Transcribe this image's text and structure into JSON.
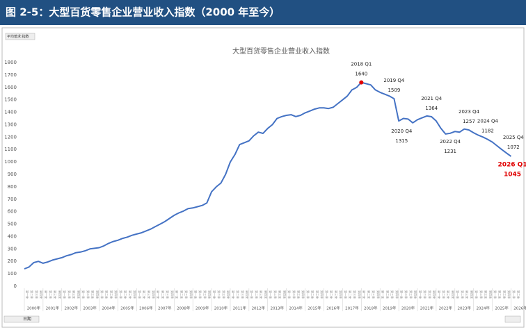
{
  "header": {
    "title": "图 2-5：大型百货零售企业营业收入指数（2000 年至今）"
  },
  "ui": {
    "value_button": "平均值求:指数",
    "filter_label": "日期"
  },
  "chart_data": {
    "type": "line",
    "title": "大型百货零售企业营业收入指数",
    "x": [
      2000,
      2000.25,
      2000.5,
      2000.75,
      2001,
      2001.25,
      2001.5,
      2001.75,
      2002,
      2002.25,
      2002.5,
      2002.75,
      2003,
      2003.25,
      2003.5,
      2003.75,
      2004,
      2004.25,
      2004.5,
      2004.75,
      2005,
      2005.25,
      2005.5,
      2005.75,
      2006,
      2006.25,
      2006.5,
      2006.75,
      2007,
      2007.25,
      2007.5,
      2007.75,
      2008,
      2008.25,
      2008.5,
      2008.75,
      2009,
      2009.25,
      2009.5,
      2009.75,
      2010,
      2010.25,
      2010.5,
      2010.75,
      2011,
      2011.25,
      2011.5,
      2011.75,
      2012,
      2012.25,
      2012.5,
      2012.75,
      2013,
      2013.25,
      2013.5,
      2013.75,
      2014,
      2014.25,
      2014.5,
      2014.75,
      2015,
      2015.25,
      2015.5,
      2015.75,
      2016,
      2016.25,
      2016.5,
      2016.75,
      2017,
      2017.25,
      2017.5,
      2017.75,
      2018,
      2018.25,
      2018.5,
      2018.75,
      2019,
      2019.25,
      2019.5,
      2019.75,
      2020,
      2020.25,
      2020.5,
      2020.75,
      2021,
      2021.25,
      2021.5,
      2021.75,
      2022,
      2022.25,
      2022.5,
      2022.75,
      2023,
      2023.25,
      2023.5,
      2023.75,
      2024,
      2024.25,
      2024.5,
      2024.75,
      2025,
      2025.25,
      2025.5,
      2025.75,
      2026
    ],
    "series": [
      {
        "name": "指数",
        "color": "#4472c4",
        "values": [
          140,
          155,
          190,
          200,
          185,
          195,
          210,
          220,
          230,
          245,
          255,
          270,
          275,
          285,
          300,
          305,
          310,
          325,
          345,
          360,
          370,
          385,
          395,
          410,
          420,
          430,
          445,
          460,
          480,
          500,
          520,
          545,
          570,
          590,
          605,
          625,
          630,
          640,
          650,
          670,
          760,
          800,
          830,
          900,
          1000,
          1060,
          1140,
          1155,
          1170,
          1210,
          1240,
          1230,
          1270,
          1300,
          1350,
          1365,
          1375,
          1380,
          1365,
          1375,
          1395,
          1410,
          1425,
          1435,
          1435,
          1430,
          1440,
          1470,
          1500,
          1530,
          1580,
          1600,
          1640,
          1630,
          1620,
          1580,
          1560,
          1545,
          1530,
          1509,
          1330,
          1350,
          1345,
          1315,
          1340,
          1355,
          1370,
          1364,
          1330,
          1270,
          1225,
          1231,
          1245,
          1240,
          1265,
          1257,
          1235,
          1215,
          1200,
          1182,
          1160,
          1130,
          1100,
          1072,
          1045
        ]
      }
    ],
    "xlim": [
      2000,
      2026.5
    ],
    "xticks": [
      {
        "value": 2000,
        "label": "2000年"
      },
      {
        "value": 2001,
        "label": "2001年"
      },
      {
        "value": 2002,
        "label": "2002年"
      },
      {
        "value": 2003,
        "label": "2003年"
      },
      {
        "value": 2004,
        "label": "2004年"
      },
      {
        "value": 2005,
        "label": "2005年"
      },
      {
        "value": 2006,
        "label": "2006年"
      },
      {
        "value": 2007,
        "label": "2007年"
      },
      {
        "value": 2008,
        "label": "2008年"
      },
      {
        "value": 2009,
        "label": "2009年"
      },
      {
        "value": 2010,
        "label": "2010年"
      },
      {
        "value": 2011,
        "label": "2011年"
      },
      {
        "value": 2012,
        "label": "2012年"
      },
      {
        "value": 2013,
        "label": "2013年"
      },
      {
        "value": 2014,
        "label": "2014年"
      },
      {
        "value": 2015,
        "label": "2015年"
      },
      {
        "value": 2016,
        "label": "2016年"
      },
      {
        "value": 2017,
        "label": "2017年"
      },
      {
        "value": 2018,
        "label": "2018年"
      },
      {
        "value": 2019,
        "label": "2019年"
      },
      {
        "value": 2020,
        "label": "2020年"
      },
      {
        "value": 2021,
        "label": "2021年"
      },
      {
        "value": 2022,
        "label": "2022年"
      },
      {
        "value": 2023,
        "label": "2023年"
      },
      {
        "value": 2024,
        "label": "2024年"
      },
      {
        "value": 2025,
        "label": "2025年"
      },
      {
        "value": 2026,
        "label": "2026年"
      }
    ],
    "quarter_labels": [
      "第一季",
      "第二季",
      "第三季",
      "第四季"
    ],
    "ylim": [
      0,
      1800
    ],
    "yticks": [
      0,
      100,
      200,
      300,
      400,
      500,
      600,
      700,
      800,
      900,
      1000,
      1100,
      1200,
      1300,
      1400,
      1500,
      1600,
      1700,
      1800
    ],
    "grid": false,
    "annotations": [
      {
        "label": "2018 Q1",
        "x": 2018,
        "value": 1640
      },
      {
        "label": "2019 Q4",
        "x": 2019.75,
        "value": 1509
      },
      {
        "label": "2020 Q4",
        "x": 2020.75,
        "value": 1315
      },
      {
        "label": "2021 Q4",
        "x": 2021.75,
        "value": 1364
      },
      {
        "label": "2022 Q4",
        "x": 2022.75,
        "value": 1231
      },
      {
        "label": "2023 Q4",
        "x": 2023.75,
        "value": 1257
      },
      {
        "label": "2024 Q4",
        "x": 2024.75,
        "value": 1182
      },
      {
        "label": "2025 Q4",
        "x": 2025.75,
        "value": 1072
      },
      {
        "label": "2026 Q1",
        "x": 2026,
        "value": 1045
      }
    ]
  }
}
